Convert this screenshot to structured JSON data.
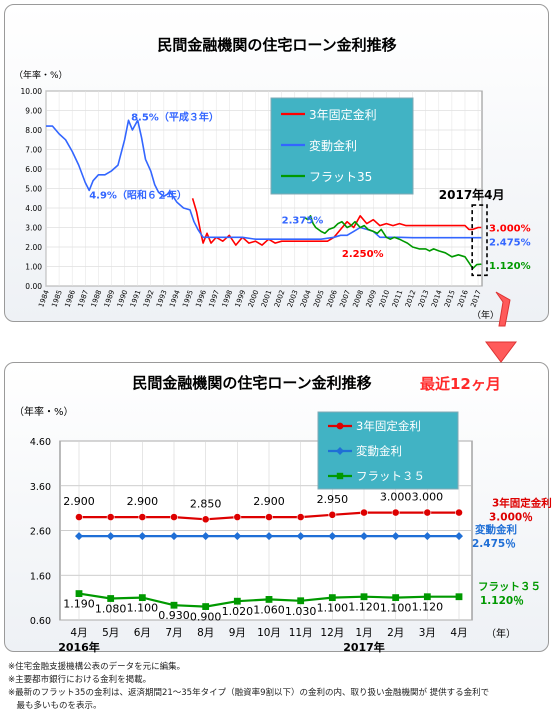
{
  "chart_data": [
    {
      "type": "line",
      "title": "民間金融機関の住宅ローン金利推移",
      "y_unit_label": "（年率・%）",
      "x_unit_label": "（年）",
      "ylim": [
        0,
        10
      ],
      "y_ticks": [
        "0.00",
        "1.00",
        "2.00",
        "3.00",
        "4.00",
        "5.00",
        "6.00",
        "7.00",
        "8.00",
        "9.00",
        "10.00"
      ],
      "x_ticks": [
        "1984",
        "1985",
        "1986",
        "1987",
        "1988",
        "1989",
        "1990",
        "1991",
        "1992",
        "1993",
        "1994",
        "1995",
        "1996",
        "1997",
        "1998",
        "1999",
        "2000",
        "2001",
        "2002",
        "2003",
        "2004",
        "2005",
        "2006",
        "2007",
        "2008",
        "2009",
        "2010",
        "2011",
        "2012",
        "2013",
        "2014",
        "2015",
        "2016",
        "2017"
      ],
      "grid": true,
      "legend_placement": "top-center",
      "series": [
        {
          "name": "3年固定金利",
          "color": "#ff0000",
          "x": [
            1995.2,
            1995.5,
            1995.8,
            1996.0,
            1996.3,
            1996.6,
            1997.0,
            1997.5,
            1998.0,
            1998.5,
            1999.0,
            1999.5,
            2000.0,
            2000.5,
            2001.0,
            2001.5,
            2002.0,
            2002.5,
            2003.0,
            2003.5,
            2004.0,
            2004.5,
            2005.0,
            2005.5,
            2006.0,
            2006.5,
            2007.0,
            2007.5,
            2008.0,
            2008.5,
            2009.0,
            2009.5,
            2010.0,
            2010.5,
            2011.0,
            2011.5,
            2012.0,
            2012.5,
            2013.0,
            2013.5,
            2014.0,
            2014.5,
            2015.0,
            2015.5,
            2016.0,
            2016.3,
            2016.6,
            2017.0,
            2017.25
          ],
          "y": [
            4.5,
            3.8,
            2.8,
            2.2,
            2.7,
            2.2,
            2.5,
            2.3,
            2.6,
            2.1,
            2.5,
            2.2,
            2.3,
            2.1,
            2.4,
            2.2,
            2.3,
            2.3,
            2.3,
            2.3,
            2.3,
            2.3,
            2.3,
            2.3,
            2.5,
            2.9,
            3.3,
            3.0,
            3.6,
            3.2,
            3.4,
            3.1,
            3.2,
            3.1,
            3.2,
            3.1,
            3.1,
            3.1,
            3.1,
            3.1,
            3.1,
            3.1,
            3.1,
            3.1,
            3.1,
            2.9,
            2.9,
            3.0,
            3.0
          ]
        },
        {
          "name": "変動金利",
          "color": "#3366ff",
          "x": [
            1984.0,
            1984.5,
            1985.0,
            1985.5,
            1986.0,
            1986.5,
            1987.0,
            1987.3,
            1987.6,
            1988.0,
            1988.5,
            1989.0,
            1989.5,
            1990.0,
            1990.3,
            1990.6,
            1991.0,
            1991.3,
            1991.6,
            1992.0,
            1992.3,
            1992.6,
            1993.0,
            1993.5,
            1994.0,
            1994.5,
            1995.0,
            1995.3,
            1995.6,
            1996.0,
            1996.5,
            1997.0,
            1998.0,
            1999.0,
            2000.0,
            2001.0,
            2002.0,
            2003.0,
            2004.0,
            2005.0,
            2006.0,
            2006.5,
            2007.0,
            2007.5,
            2008.0,
            2008.5,
            2009.0,
            2009.5,
            2010.0,
            2011.0,
            2012.0,
            2013.0,
            2014.0,
            2015.0,
            2016.0,
            2017.0,
            2017.25
          ],
          "y": [
            8.2,
            8.2,
            7.8,
            7.5,
            6.9,
            6.2,
            5.3,
            4.9,
            5.4,
            5.7,
            5.7,
            5.9,
            6.2,
            7.5,
            8.5,
            8.0,
            8.5,
            7.6,
            6.5,
            5.9,
            5.2,
            4.8,
            4.6,
            4.8,
            4.3,
            4.0,
            3.9,
            3.3,
            2.9,
            2.5,
            2.5,
            2.5,
            2.5,
            2.5,
            2.4,
            2.4,
            2.4,
            2.4,
            2.4,
            2.4,
            2.5,
            2.6,
            2.6,
            2.8,
            3.0,
            2.9,
            2.8,
            2.5,
            2.5,
            2.5,
            2.475,
            2.475,
            2.475,
            2.475,
            2.475,
            2.475,
            2.475
          ]
        },
        {
          "name": "フラット35",
          "color": "#009900",
          "x": [
            2003.8,
            2004.0,
            2004.2,
            2004.4,
            2004.6,
            2004.8,
            2005.0,
            2005.3,
            2005.6,
            2006.0,
            2006.3,
            2006.6,
            2007.0,
            2007.3,
            2007.6,
            2008.0,
            2008.3,
            2008.6,
            2009.0,
            2009.3,
            2009.6,
            2010.0,
            2010.3,
            2010.6,
            2011.0,
            2011.3,
            2011.6,
            2012.0,
            2012.5,
            2013.0,
            2013.3,
            2013.6,
            2014.0,
            2014.5,
            2015.0,
            2015.5,
            2016.0,
            2016.3,
            2016.6,
            2016.9,
            2017.25
          ],
          "y": [
            3.5,
            3.4,
            3.6,
            3.2,
            3.0,
            2.9,
            2.8,
            2.7,
            2.9,
            3.0,
            3.2,
            3.3,
            3.0,
            3.1,
            3.3,
            3.0,
            3.1,
            2.9,
            2.8,
            2.7,
            2.9,
            2.5,
            2.4,
            2.5,
            2.4,
            2.3,
            2.2,
            2.0,
            1.9,
            1.9,
            1.8,
            1.9,
            1.8,
            1.7,
            1.5,
            1.6,
            1.5,
            1.2,
            0.9,
            1.1,
            1.12
          ]
        }
      ],
      "annotations": [
        {
          "text": "8.5%（平成３年）",
          "x": 1990.5,
          "y": 8.5,
          "color": "#3366ff"
        },
        {
          "text": "4.9%（昭和６２年）",
          "x": 1987.3,
          "y": 4.5,
          "color": "#3366ff"
        },
        {
          "text": "2.375%",
          "x": 2002.0,
          "y": 3.2,
          "color": "#3366ff"
        },
        {
          "text": "2.250%",
          "x": 2006.6,
          "y": 1.5,
          "color": "#ff0000"
        },
        {
          "text": "2017年4月",
          "x": 2014.0,
          "y": 4.45,
          "color": "#000000"
        }
      ],
      "end_labels": [
        {
          "text": "3.000%",
          "color": "#ff0000"
        },
        {
          "text": "2.475%",
          "color": "#3366ff"
        },
        {
          "text": "1.120%",
          "color": "#009900"
        }
      ]
    },
    {
      "type": "line",
      "title": "民間金融機関の住宅ローン金利推移",
      "highlight": "最近12ヶ月",
      "y_unit_label": "（年率・%）",
      "x_unit_label": "（年）",
      "ylim": [
        0.6,
        4.6
      ],
      "y_ticks": [
        "0.60",
        "1.60",
        "2.60",
        "3.60",
        "4.60"
      ],
      "categories": [
        "4月",
        "5月",
        "6月",
        "7月",
        "8月",
        "9月",
        "10月",
        "11月",
        "12月",
        "1月",
        "2月",
        "3月",
        "4月"
      ],
      "year_labels": [
        {
          "text": "2016年",
          "index": 0
        },
        {
          "text": "2017年",
          "index": 9
        }
      ],
      "grid": true,
      "legend_placement": "top-center",
      "series": [
        {
          "name": "3年固定金利",
          "color": "#dd0000",
          "values": [
            2.9,
            2.9,
            2.9,
            2.9,
            2.85,
            2.9,
            2.9,
            2.9,
            2.95,
            3.0,
            3.0,
            3.0,
            3.0
          ],
          "labels": [
            "2.900",
            "",
            "2.900",
            "",
            "2.850",
            "",
            "2.900",
            "",
            "2.950",
            "",
            "3.000",
            "3.000",
            ""
          ],
          "end_label": "3年固定金利",
          "end_value": "3.000％"
        },
        {
          "name": "変動金利",
          "color": "#1f6fd6",
          "values": [
            2.475,
            2.475,
            2.475,
            2.475,
            2.475,
            2.475,
            2.475,
            2.475,
            2.475,
            2.475,
            2.475,
            2.475,
            2.475
          ],
          "labels": [
            "",
            "",
            "",
            "",
            "",
            "",
            "",
            "",
            "",
            "",
            "",
            "",
            ""
          ],
          "end_label": "変動金利",
          "end_value": "2.475％"
        },
        {
          "name": "フラット３５",
          "color": "#009900",
          "values": [
            1.19,
            1.08,
            1.1,
            0.93,
            0.9,
            1.02,
            1.06,
            1.03,
            1.1,
            1.12,
            1.1,
            1.12,
            1.12
          ],
          "labels": [
            "1.190",
            "1.080",
            "1.100",
            "0.930",
            "0.900",
            "1.020",
            "1.060",
            "1.030",
            "1.100",
            "1.120",
            "1.100",
            "1.120",
            ""
          ],
          "end_label": "フラット３５",
          "end_value": "1.120％"
        }
      ]
    }
  ],
  "notes": [
    "※住宅金融支援機構公表のデータを元に編集。",
    "※主要都市銀行における金利を掲載。",
    "※最新のフラット35の金利は、返済期間21～35年タイプ（融資率9割以下）の金利の内、取り扱い金融機関が 提供する金利で",
    "　最も多いものを表示。"
  ]
}
